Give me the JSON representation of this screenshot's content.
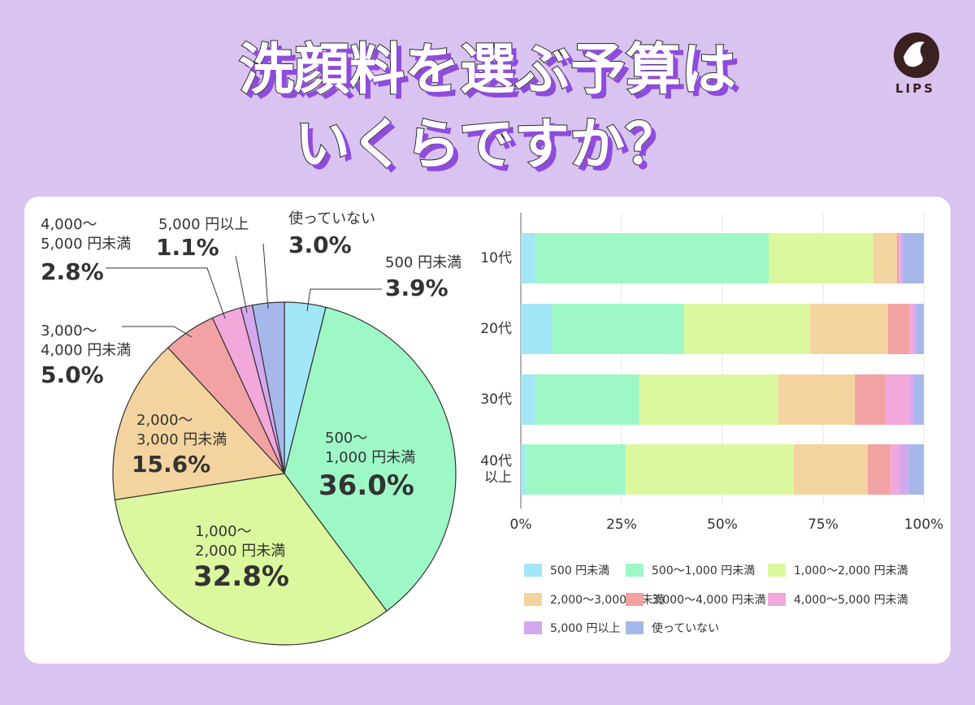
{
  "header": {
    "title_lines": [
      "洗顔料を選ぶ予算は",
      "いくらですか？"
    ],
    "logo": "LIPS"
  },
  "chart_data": [
    {
      "type": "pie",
      "categories": [
        "500 円未満",
        "500〜\n1,000 円未満",
        "1,000〜\n2,000 円未満",
        "2,000〜\n3,000 円未満",
        "3,000〜\n4,000 円未満",
        "4,000〜\n5,000 円未満",
        "5,000 円以上",
        "使っていない"
      ],
      "values": [
        3.9,
        36.0,
        32.8,
        15.6,
        5.0,
        2.8,
        1.1,
        3.0
      ],
      "value_labels": [
        "3.9%",
        "36.0%",
        "32.8%",
        "15.6%",
        "5.0%",
        "2.8%",
        "1.1%",
        "3.0%"
      ],
      "colors": [
        "#a2e6f8",
        "#9ef8c6",
        "#dbf89e",
        "#f4d49e",
        "#f2a2a2",
        "#f2a8da",
        "#d4a8ee",
        "#a6b8ea"
      ]
    },
    {
      "type": "stacked-bar-horizontal",
      "categories": [
        "10代",
        "20代",
        "30代",
        "40代\n以上"
      ],
      "series": [
        {
          "name": "500 円未満",
          "color": "#a2e6f8",
          "values": [
            3.6,
            7.7,
            3.6,
            1.0
          ]
        },
        {
          "name": "500〜1,000 円未満",
          "color": "#9ef8c6",
          "values": [
            57.9,
            32.8,
            25.8,
            25.0
          ]
        },
        {
          "name": "1,000〜2,000 円未満",
          "color": "#dbf89e",
          "values": [
            26.0,
            31.3,
            34.5,
            41.7
          ]
        },
        {
          "name": "2,000〜3,000 円未満",
          "color": "#f4d49e",
          "values": [
            5.8,
            19.3,
            19.0,
            18.4
          ]
        },
        {
          "name": "3,000〜4,000 円未満",
          "color": "#f2a2a2",
          "values": [
            0.5,
            5.3,
            7.6,
            5.6
          ]
        },
        {
          "name": "4,000〜5,000 円未満",
          "color": "#f2a8da",
          "values": [
            0.4,
            1.0,
            6.1,
            2.1
          ]
        },
        {
          "name": "5,000 円以上",
          "color": "#d4a8ee",
          "values": [
            0.6,
            0.8,
            1.0,
            2.4
          ]
        },
        {
          "name": "使っていない",
          "color": "#a6b8ea",
          "values": [
            5.2,
            1.8,
            2.4,
            3.8
          ]
        }
      ],
      "xlim": [
        0,
        100
      ],
      "xticks": [
        {
          "value": 0,
          "label": "0%"
        },
        {
          "value": 25,
          "label": "25%"
        },
        {
          "value": 50,
          "label": "50%"
        },
        {
          "value": 75,
          "label": "75%"
        },
        {
          "value": 100,
          "label": "100%"
        }
      ],
      "grid": true
    }
  ]
}
